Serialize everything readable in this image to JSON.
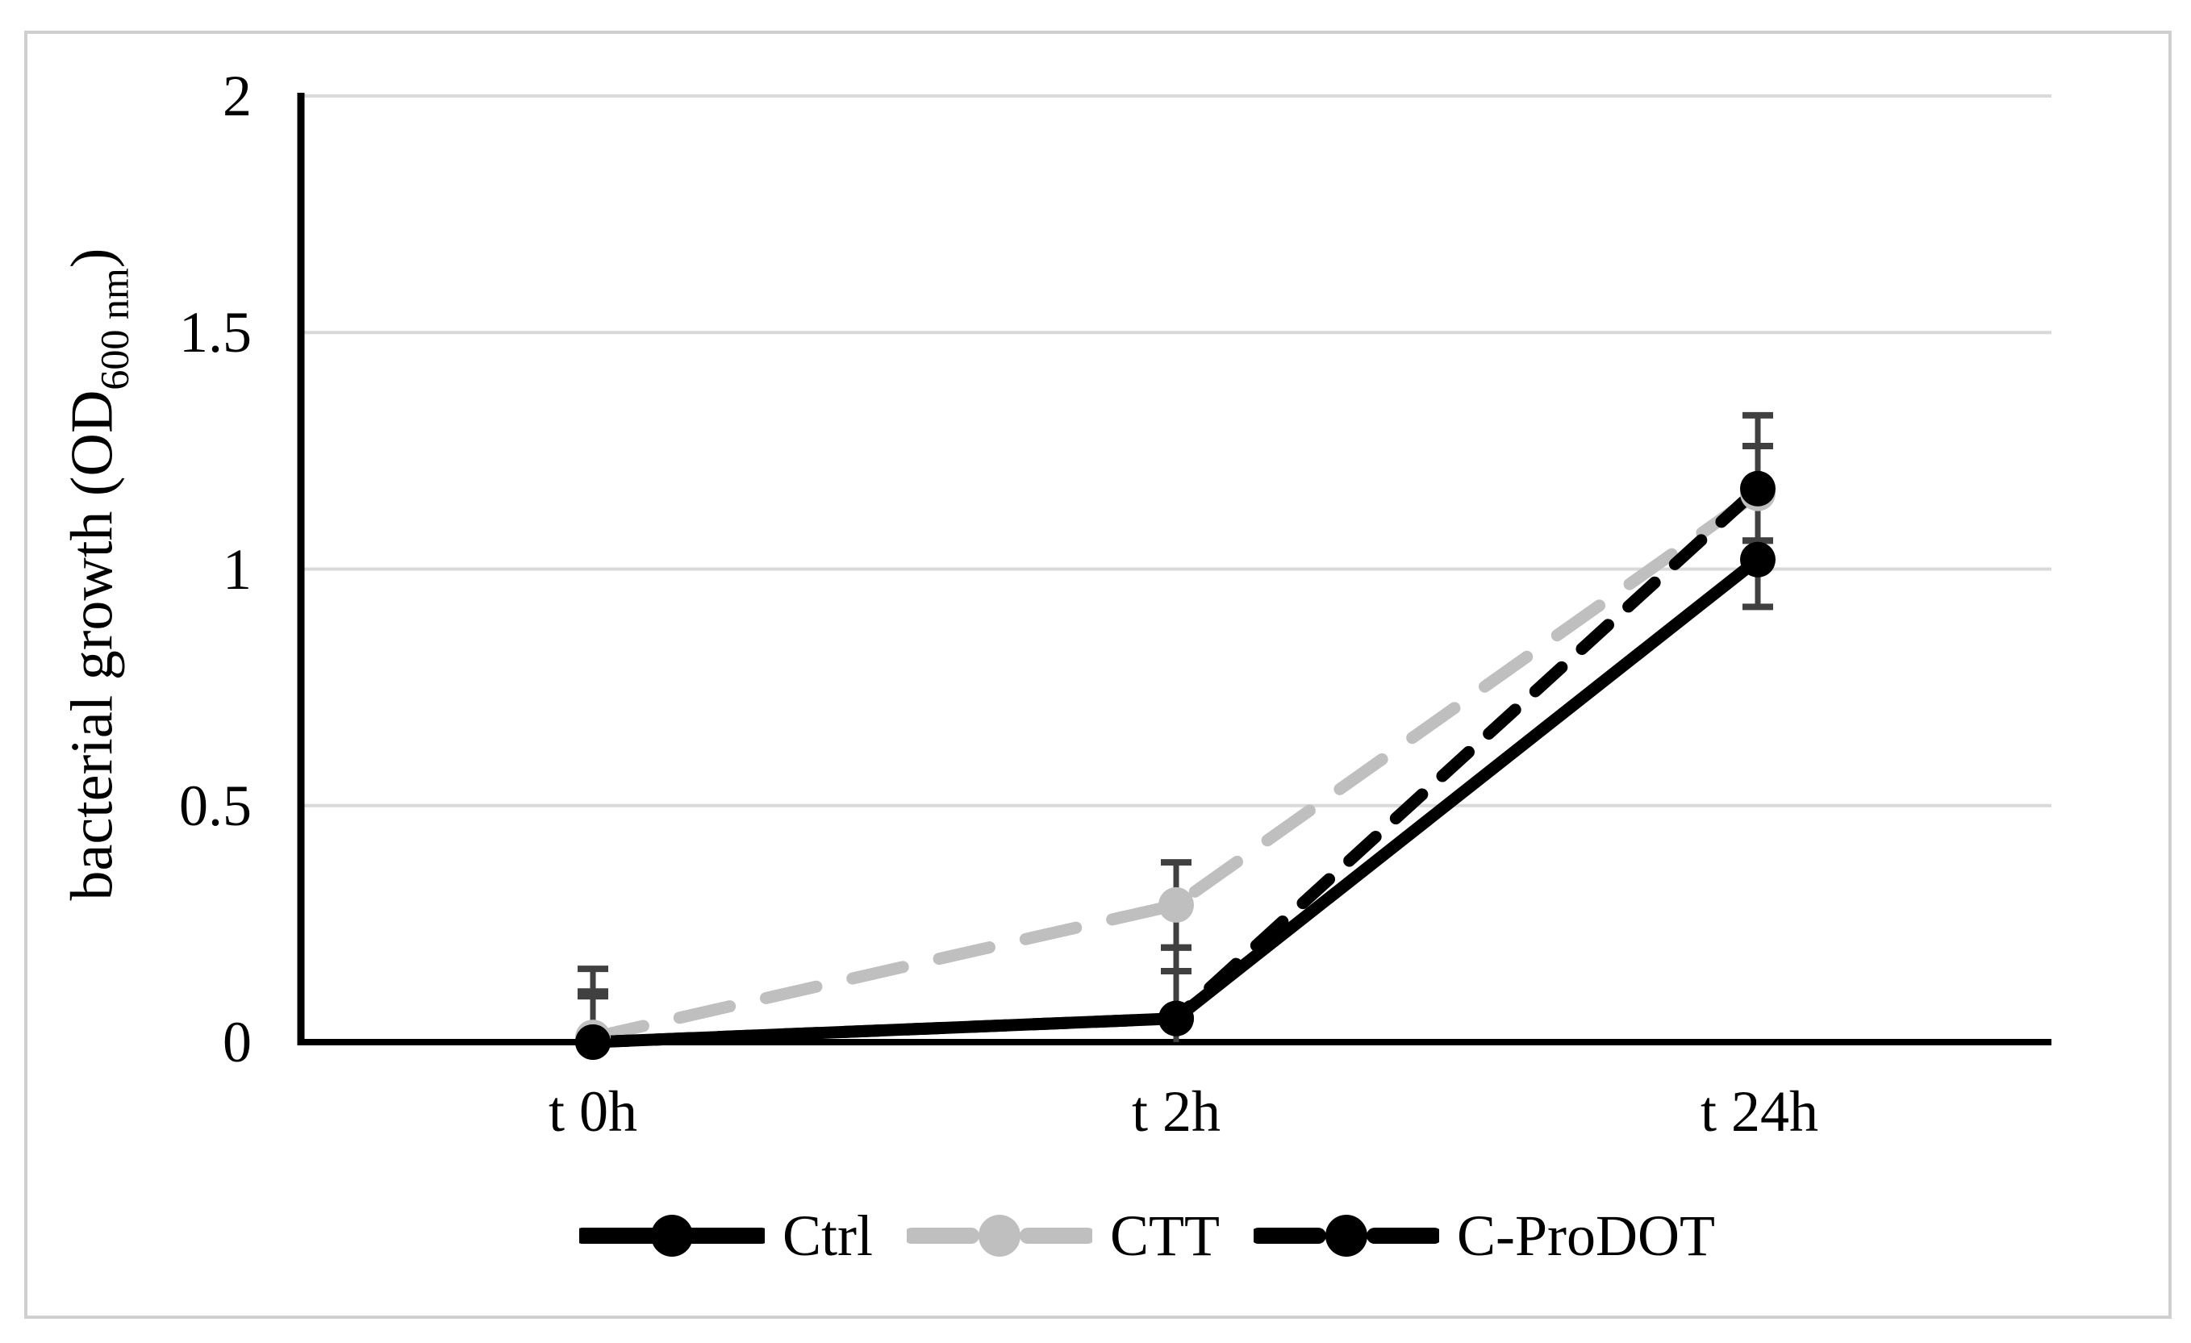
{
  "chart_data": {
    "type": "line",
    "title": "",
    "ylabel_main": "bacterial growth (OD",
    "ylabel_sub": "600 nm",
    "ylabel_end": ")",
    "xlabel": "",
    "categories": [
      "t 0h",
      "t 2h",
      "t 24h"
    ],
    "ylim": [
      0,
      2
    ],
    "yticks": [
      0,
      0.5,
      1,
      1.5,
      2
    ],
    "ytick_labels": [
      "0",
      "0.5",
      "1",
      "1.5",
      "2"
    ],
    "grid": true,
    "legend_position": "bottom",
    "axis_color": "#000000",
    "gridline_color": "#d9d9d9",
    "error_bar_color": "#404040",
    "series": [
      {
        "name": "Ctrl",
        "color": "#000000",
        "dash": "solid",
        "marker": "circle",
        "values": [
          0.0,
          0.05,
          1.02
        ],
        "err_up": [
          0.097,
          0.1,
          0.145
        ],
        "err_down": [
          0,
          0.05,
          0.1
        ]
      },
      {
        "name": "CTT",
        "color": "#bfbfbf",
        "dash": "dashed",
        "marker": "circle",
        "values": [
          0.01,
          0.29,
          1.16
        ],
        "err_up": [
          0.097,
          0.09,
          0.1
        ],
        "err_down": [
          0,
          0.09,
          0.1
        ]
      },
      {
        "name": "C-ProDOT",
        "color": "#000000",
        "dash": "dashed-short",
        "marker": "circle",
        "values": [
          0.0,
          0.05,
          1.17
        ],
        "err_up": [
          0.155,
          0.15,
          0.155
        ],
        "err_down": [
          0,
          0.05,
          0.11
        ]
      }
    ]
  }
}
